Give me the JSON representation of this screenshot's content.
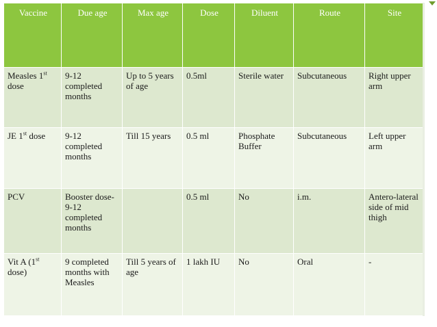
{
  "table": {
    "headers": [
      "Vaccine",
      "Due age",
      "Max age",
      "Dose",
      "Diluent",
      "Route",
      "Site"
    ],
    "rows": [
      {
        "vaccine_main": "Measles 1",
        "vaccine_sup": "st",
        "vaccine_tail": " dose",
        "due_age": "9-12 completed months",
        "max_age": "Up to 5 years of age",
        "dose": "0.5ml",
        "diluent": "Sterile water",
        "route": "Subcutaneous",
        "site": "Right upper arm"
      },
      {
        "vaccine_main": "JE 1",
        "vaccine_sup": "st",
        "vaccine_tail": " dose",
        "due_age": "9-12 completed months",
        "max_age": "Till 15 years",
        "dose": "0.5 ml",
        "diluent": "Phosphate Buffer",
        "route": "Subcutaneous",
        "site": "Left upper arm"
      },
      {
        "vaccine_main": "PCV",
        "vaccine_sup": "",
        "vaccine_tail": "",
        "due_age": "Booster dose- 9-12 completed months",
        "max_age": "",
        "dose": "0.5 ml",
        "diluent": "No",
        "route": "i.m.",
        "site": "Antero-lateral side of mid thigh"
      },
      {
        "vaccine_main": "Vit A (1",
        "vaccine_sup": "st",
        "vaccine_tail": " dose)",
        "due_age": "9 completed months with Measles",
        "max_age": "Till 5 years of age",
        "dose": "1 lakh IU",
        "diluent": "No",
        "route": "Oral",
        "site": "-"
      }
    ]
  },
  "colors": {
    "header_bg": "#8dc63f",
    "row_odd_bg": "#dde8cf",
    "row_even_bg": "#eef4e6"
  }
}
